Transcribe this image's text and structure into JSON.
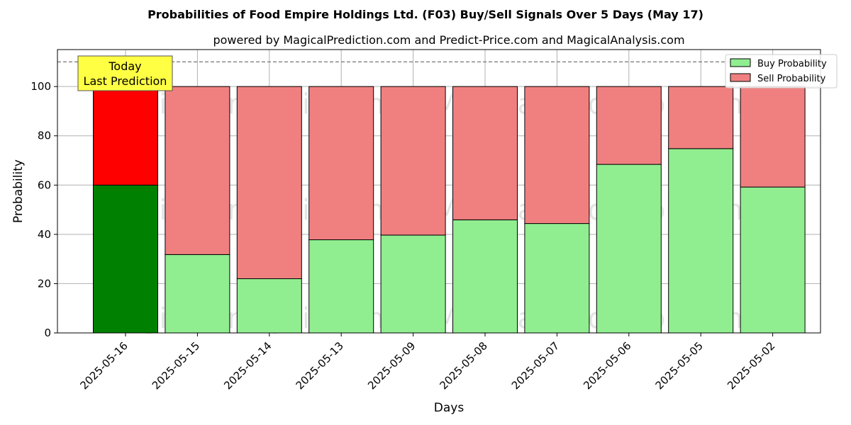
{
  "chart_data": {
    "type": "bar",
    "stacked": true,
    "title": "Probabilities of Food Empire Holdings Ltd. (F03) Buy/Sell Signals Over 5 Days (May 17)",
    "subtitle": "powered by MagicalPrediction.com and Predict-Price.com and MagicalAnalysis.com",
    "xlabel": "Days",
    "ylabel": "Probability",
    "ylim": [
      0,
      115
    ],
    "yticks": [
      0,
      20,
      40,
      60,
      80,
      100
    ],
    "grid": true,
    "reference_line": 110,
    "legend_position": "top-right",
    "categories": [
      "2025-05-16",
      "2025-05-15",
      "2025-05-14",
      "2025-05-13",
      "2025-05-09",
      "2025-05-08",
      "2025-05-07",
      "2025-05-06",
      "2025-05-05",
      "2025-05-02"
    ],
    "series": [
      {
        "name": "Buy Probability",
        "values": [
          60,
          31.8,
          22,
          37.8,
          39.7,
          45.9,
          44.4,
          68.4,
          74.8,
          59.2
        ],
        "color": "#90ee90",
        "highlight_color": "#008000"
      },
      {
        "name": "Sell Probability",
        "values": [
          40,
          68.2,
          78,
          62.2,
          60.3,
          54.1,
          55.6,
          31.6,
          25.2,
          40.8
        ],
        "color": "#f08080",
        "highlight_color": "#ff0000"
      }
    ],
    "annotation": {
      "line1": "Today",
      "line2": "Last Prediction",
      "background": "#ffff44"
    },
    "watermarks": [
      "MagicalAnalysis.com",
      "MagicalPrediction.com"
    ]
  }
}
